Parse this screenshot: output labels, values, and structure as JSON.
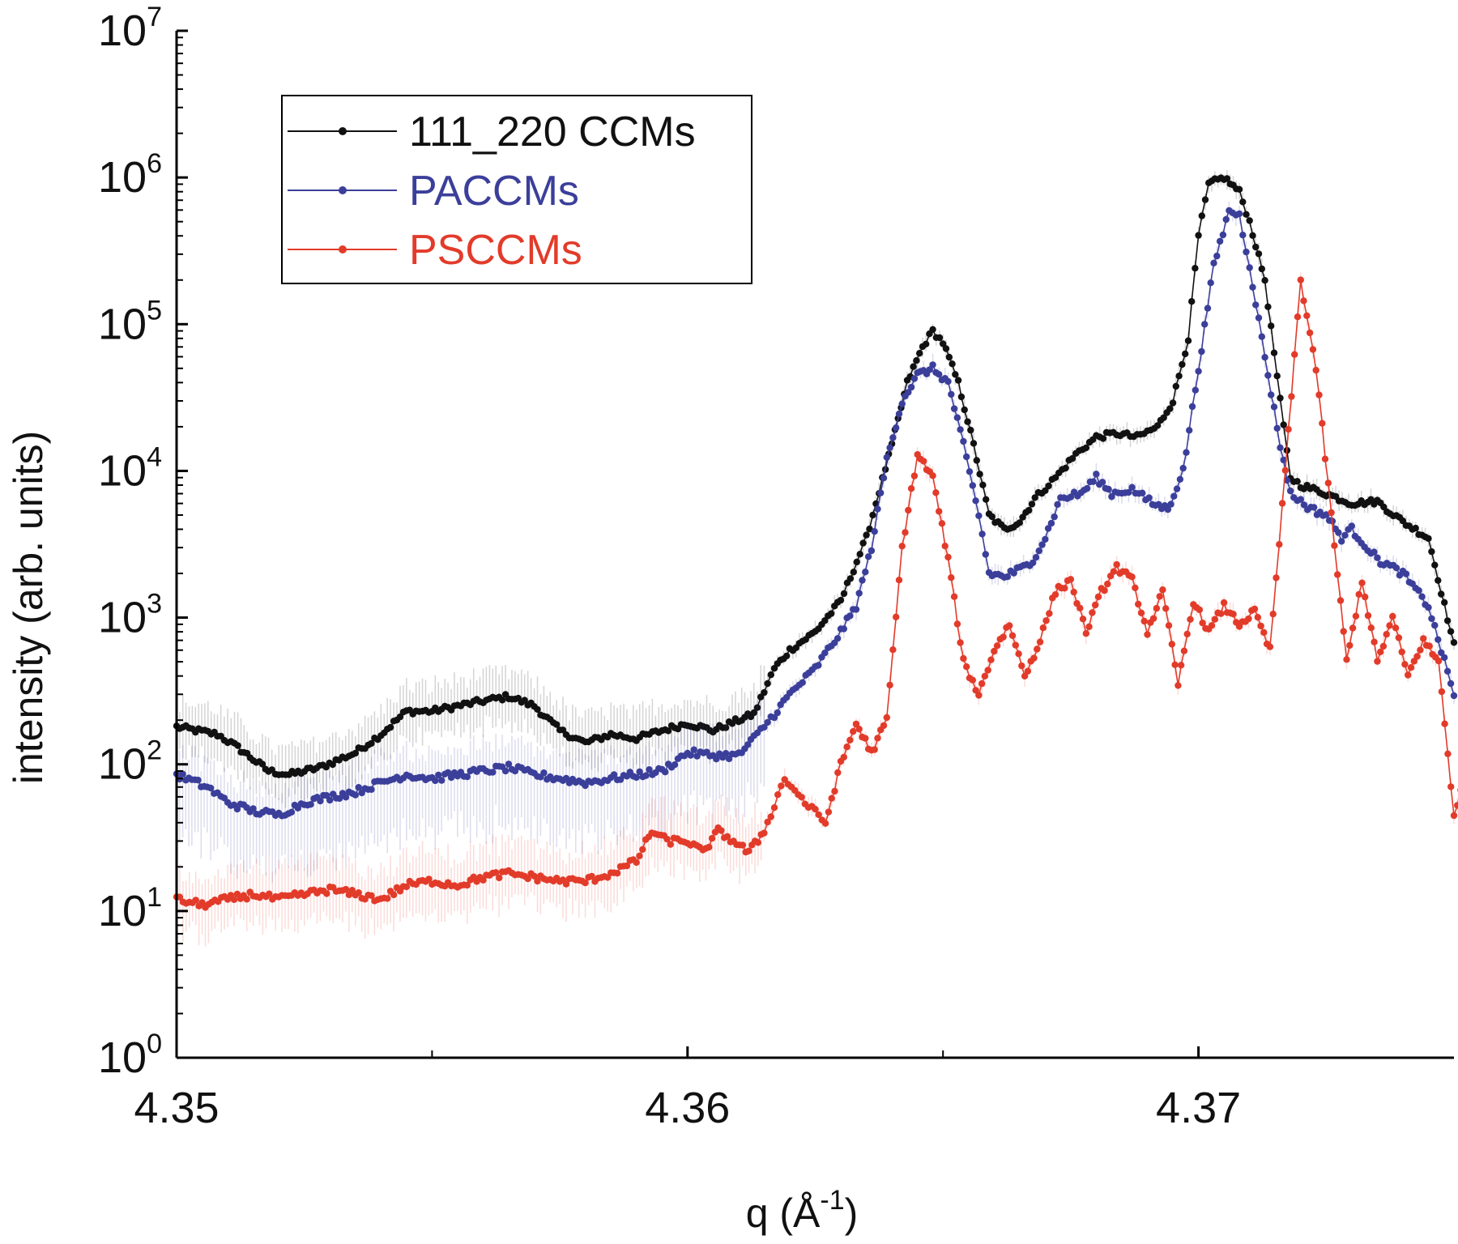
{
  "chart_data": {
    "type": "line",
    "xlabel": {
      "main": "q (Å",
      "sup": "-1",
      "end": ")"
    },
    "ylabel": "intensity (arb. units)",
    "xlim": [
      4.35,
      4.375
    ],
    "ylim": [
      1,
      10000000
    ],
    "yscale": "log",
    "x_ticks": [
      4.35,
      4.36,
      4.37
    ],
    "x_tick_labels": [
      "4.35",
      "4.36",
      "4.37"
    ],
    "y_ticks": [
      {
        "base": "10",
        "exp": "0",
        "value": 1
      },
      {
        "base": "10",
        "exp": "1",
        "value": 10
      },
      {
        "base": "10",
        "exp": "2",
        "value": 100
      },
      {
        "base": "10",
        "exp": "3",
        "value": 1000
      },
      {
        "base": "10",
        "exp": "4",
        "value": 10000
      },
      {
        "base": "10",
        "exp": "5",
        "value": 100000
      },
      {
        "base": "10",
        "exp": "6",
        "value": 1000000
      },
      {
        "base": "10",
        "exp": "7",
        "value": 10000000
      }
    ],
    "grid": false,
    "legend": {
      "position": "top-left"
    },
    "series": [
      {
        "name": "111_220 CCMs",
        "color": "#111111",
        "points": [
          [
            4.35,
            180
          ],
          [
            4.3508,
            160
          ],
          [
            4.3512,
            130
          ],
          [
            4.3518,
            90
          ],
          [
            4.3522,
            85
          ],
          [
            4.3528,
            95
          ],
          [
            4.3535,
            120
          ],
          [
            4.354,
            160
          ],
          [
            4.3545,
            230
          ],
          [
            4.355,
            230
          ],
          [
            4.3555,
            250
          ],
          [
            4.356,
            270
          ],
          [
            4.3565,
            290
          ],
          [
            4.357,
            250
          ],
          [
            4.3575,
            170
          ],
          [
            4.358,
            140
          ],
          [
            4.3585,
            160
          ],
          [
            4.359,
            150
          ],
          [
            4.3595,
            170
          ],
          [
            4.36,
            190
          ],
          [
            4.3605,
            170
          ],
          [
            4.361,
            200
          ],
          [
            4.3613,
            220
          ],
          [
            4.3617,
            450
          ],
          [
            4.362,
            600
          ],
          [
            4.3625,
            800
          ],
          [
            4.363,
            1300
          ],
          [
            4.3635,
            3500
          ],
          [
            4.364,
            15000
          ],
          [
            4.3643,
            40000
          ],
          [
            4.3646,
            70000
          ],
          [
            4.3648,
            90000
          ],
          [
            4.365,
            75000
          ],
          [
            4.3653,
            40000
          ],
          [
            4.3656,
            15000
          ],
          [
            4.3659,
            5000
          ],
          [
            4.3662,
            4000
          ],
          [
            4.3665,
            4500
          ],
          [
            4.3668,
            6500
          ],
          [
            4.3672,
            9000
          ],
          [
            4.3676,
            13000
          ],
          [
            4.368,
            17000
          ],
          [
            4.3684,
            18000
          ],
          [
            4.3688,
            17000
          ],
          [
            4.3692,
            20000
          ],
          [
            4.3695,
            30000
          ],
          [
            4.3698,
            80000
          ],
          [
            4.37,
            400000
          ],
          [
            4.3702,
            900000
          ],
          [
            4.3705,
            1000000
          ],
          [
            4.3708,
            800000
          ],
          [
            4.371,
            500000
          ],
          [
            4.3713,
            200000
          ],
          [
            4.3716,
            30000
          ],
          [
            4.3718,
            9000
          ],
          [
            4.372,
            8000
          ],
          [
            4.3725,
            7000
          ],
          [
            4.373,
            6000
          ],
          [
            4.3735,
            6200
          ],
          [
            4.374,
            4500
          ],
          [
            4.3745,
            3500
          ],
          [
            4.375,
            650
          ]
        ]
      },
      {
        "name": "PACCMs",
        "color": "#3b3f9a",
        "points": [
          [
            4.35,
            85
          ],
          [
            4.3506,
            70
          ],
          [
            4.351,
            55
          ],
          [
            4.3515,
            48
          ],
          [
            4.352,
            45
          ],
          [
            4.3525,
            55
          ],
          [
            4.353,
            60
          ],
          [
            4.3535,
            65
          ],
          [
            4.354,
            75
          ],
          [
            4.3545,
            85
          ],
          [
            4.355,
            80
          ],
          [
            4.3555,
            85
          ],
          [
            4.356,
            90
          ],
          [
            4.3565,
            95
          ],
          [
            4.357,
            85
          ],
          [
            4.3575,
            80
          ],
          [
            4.358,
            75
          ],
          [
            4.3585,
            80
          ],
          [
            4.359,
            85
          ],
          [
            4.3595,
            90
          ],
          [
            4.36,
            120
          ],
          [
            4.3605,
            115
          ],
          [
            4.361,
            115
          ],
          [
            4.3613,
            150
          ],
          [
            4.3617,
            220
          ],
          [
            4.362,
            300
          ],
          [
            4.3625,
            450
          ],
          [
            4.363,
            800
          ],
          [
            4.3633,
            1200
          ],
          [
            4.3636,
            3000
          ],
          [
            4.3639,
            12000
          ],
          [
            4.3642,
            30000
          ],
          [
            4.3645,
            45000
          ],
          [
            4.3648,
            50000
          ],
          [
            4.3651,
            40000
          ],
          [
            4.3654,
            15000
          ],
          [
            4.3657,
            5000
          ],
          [
            4.3659,
            2000
          ],
          [
            4.3662,
            1900
          ],
          [
            4.3667,
            2300
          ],
          [
            4.367,
            3500
          ],
          [
            4.3673,
            6500
          ],
          [
            4.3677,
            7000
          ],
          [
            4.368,
            9000
          ],
          [
            4.3683,
            7000
          ],
          [
            4.3687,
            7500
          ],
          [
            4.3691,
            6000
          ],
          [
            4.3694,
            5500
          ],
          [
            4.3697,
            10000
          ],
          [
            4.37,
            50000
          ],
          [
            4.3703,
            250000
          ],
          [
            4.3706,
            600000
          ],
          [
            4.3708,
            550000
          ],
          [
            4.371,
            250000
          ],
          [
            4.3713,
            60000
          ],
          [
            4.3716,
            15000
          ],
          [
            4.3718,
            7000
          ],
          [
            4.3722,
            5500
          ],
          [
            4.3725,
            5000
          ],
          [
            4.3728,
            3500
          ],
          [
            4.373,
            4000
          ],
          [
            4.3735,
            2500
          ],
          [
            4.374,
            2000
          ],
          [
            4.3745,
            1200
          ],
          [
            4.375,
            300
          ]
        ]
      },
      {
        "name": "PSCCMs",
        "color": "#e23b2a",
        "points": [
          [
            4.35,
            12
          ],
          [
            4.3505,
            11
          ],
          [
            4.351,
            12
          ],
          [
            4.3515,
            13
          ],
          [
            4.352,
            12
          ],
          [
            4.3525,
            13
          ],
          [
            4.353,
            14
          ],
          [
            4.3535,
            13
          ],
          [
            4.354,
            12
          ],
          [
            4.3545,
            15
          ],
          [
            4.355,
            16
          ],
          [
            4.3555,
            15
          ],
          [
            4.356,
            17
          ],
          [
            4.3565,
            18
          ],
          [
            4.357,
            17
          ],
          [
            4.3575,
            16
          ],
          [
            4.358,
            16
          ],
          [
            4.3585,
            18
          ],
          [
            4.359,
            22
          ],
          [
            4.3593,
            35
          ],
          [
            4.3596,
            30
          ],
          [
            4.36,
            30
          ],
          [
            4.3603,
            25
          ],
          [
            4.3606,
            35
          ],
          [
            4.3609,
            30
          ],
          [
            4.3612,
            25
          ],
          [
            4.3615,
            35
          ],
          [
            4.3619,
            80
          ],
          [
            4.3623,
            55
          ],
          [
            4.3627,
            40
          ],
          [
            4.363,
            100
          ],
          [
            4.3633,
            190
          ],
          [
            4.3636,
            120
          ],
          [
            4.3639,
            200
          ],
          [
            4.3642,
            3000
          ],
          [
            4.3645,
            13000
          ],
          [
            4.3648,
            9000
          ],
          [
            4.3651,
            2500
          ],
          [
            4.3654,
            500
          ],
          [
            4.3657,
            300
          ],
          [
            4.366,
            600
          ],
          [
            4.3663,
            900
          ],
          [
            4.3666,
            400
          ],
          [
            4.3669,
            700
          ],
          [
            4.3672,
            1500
          ],
          [
            4.3675,
            1800
          ],
          [
            4.3678,
            800
          ],
          [
            4.3681,
            1500
          ],
          [
            4.3684,
            2200
          ],
          [
            4.3687,
            1800
          ],
          [
            4.369,
            800
          ],
          [
            4.3693,
            1500
          ],
          [
            4.3696,
            350
          ],
          [
            4.3699,
            1300
          ],
          [
            4.3702,
            800
          ],
          [
            4.3705,
            1200
          ],
          [
            4.3708,
            900
          ],
          [
            4.3711,
            1100
          ],
          [
            4.3714,
            600
          ],
          [
            4.3717,
            10000
          ],
          [
            4.372,
            200000
          ],
          [
            4.3723,
            50000
          ],
          [
            4.3726,
            5000
          ],
          [
            4.3729,
            500
          ],
          [
            4.3732,
            1800
          ],
          [
            4.3735,
            500
          ],
          [
            4.3738,
            1000
          ],
          [
            4.3741,
            400
          ],
          [
            4.3744,
            700
          ],
          [
            4.3747,
            500
          ],
          [
            4.375,
            45
          ],
          [
            4.3752,
            80
          ]
        ]
      }
    ]
  }
}
